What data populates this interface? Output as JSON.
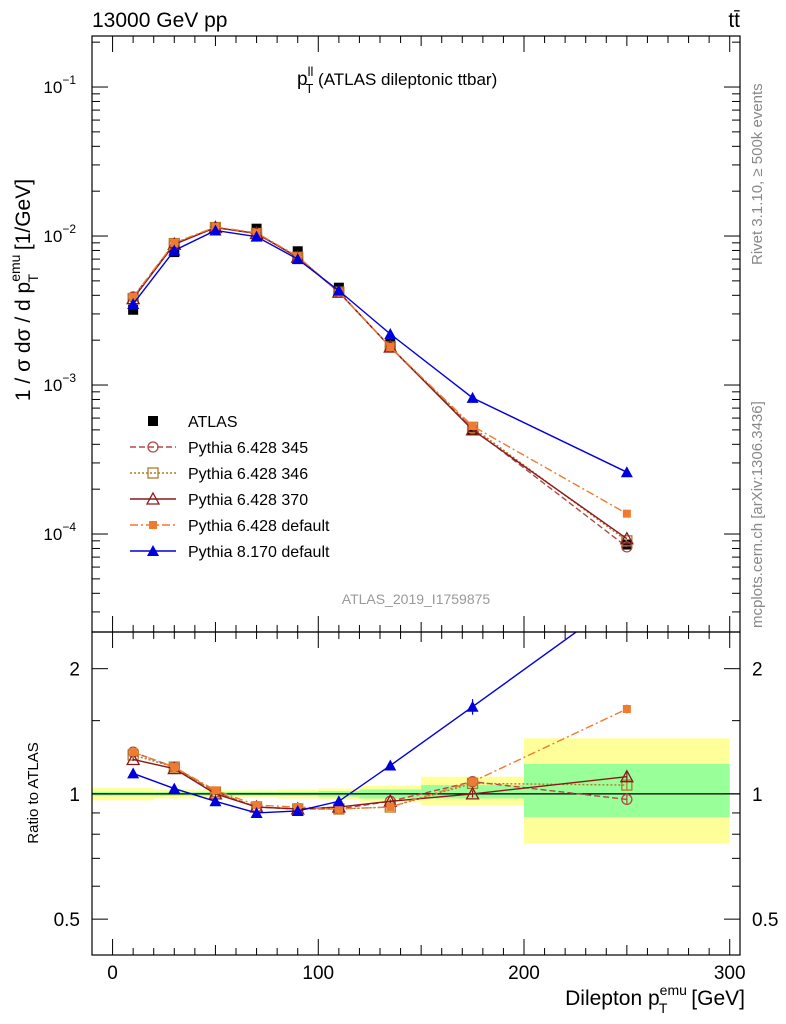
{
  "header": {
    "energy": "13000 GeV pp",
    "process": "tt̄"
  },
  "side_labels": {
    "rivet": "Rivet 3.1.10, ≥ 500k events",
    "source": "mcplots.cern.ch [arXiv:1306.3436]"
  },
  "analysis_id": "ATLAS_2019_I1759875",
  "main_title": {
    "main": "p",
    "sup": "ll",
    "sub": "T",
    "rest": " (ATLAS dileptonic ttbar)"
  },
  "ylabel_main": {
    "pre": "1 / σ  dσ / d p",
    "sup": "emu",
    "sub": "T",
    "post": " [1/GeV]"
  },
  "ylabel_ratio": "Ratio to ATLAS",
  "xlabel": {
    "pre": "Dilepton p",
    "sup": "emu",
    "sub": "T",
    "post": " [GeV]"
  },
  "colors": {
    "data": "#000000",
    "p345": "#b04a4a",
    "p346": "#b07a2a",
    "p370": "#8a1a1a",
    "p6def": "#f07a30",
    "p8": "#0000dd",
    "band_inner": "#99ff99",
    "band_outer": "#ffff99"
  },
  "chart_data": [
    {
      "type": "line",
      "yscale": "log",
      "xlim": [
        -10,
        305
      ],
      "ylim": [
        2.2e-05,
        0.22
      ],
      "xticks": [
        0,
        100,
        200,
        300
      ],
      "yticks": [
        {
          "v": 0.0001,
          "m": "10",
          "e": "−4"
        },
        {
          "v": 0.001,
          "m": "10",
          "e": "−3"
        },
        {
          "v": 0.01,
          "m": "10",
          "e": "−2"
        },
        {
          "v": 0.1,
          "m": "10",
          "e": "−1"
        }
      ],
      "x": [
        10,
        30,
        50,
        70,
        90,
        110,
        135,
        175,
        250
      ],
      "legend_position": "lower-left",
      "series": [
        {
          "name": "ATLAS",
          "key": "data",
          "values": [
            0.0032,
            0.0078,
            0.0113,
            0.0112,
            0.0079,
            0.0045,
            0.0019,
            0.0005,
            8.5e-05
          ]
        },
        {
          "name": "Pythia 6.428 345",
          "key": "p345",
          "values": [
            0.0039,
            0.0089,
            0.0114,
            0.0104,
            0.0072,
            0.0042,
            0.0018,
            0.00051,
            8.2e-05
          ]
        },
        {
          "name": "Pythia 6.428 346",
          "key": "p346",
          "values": [
            0.0038,
            0.0089,
            0.0114,
            0.0104,
            0.0072,
            0.0042,
            0.0018,
            0.00052,
            9e-05
          ]
        },
        {
          "name": "Pythia 6.428 370",
          "key": "p370",
          "values": [
            0.0038,
            0.0088,
            0.0114,
            0.0104,
            0.0072,
            0.0042,
            0.0018,
            0.0005,
            9.3e-05
          ]
        },
        {
          "name": "Pythia 6.428 default",
          "key": "p6def",
          "values": [
            0.0039,
            0.009,
            0.0115,
            0.0105,
            0.0073,
            0.0042,
            0.0018,
            0.00053,
            0.000137
          ]
        },
        {
          "name": "Pythia 8.170 default",
          "key": "p8",
          "values": [
            0.0035,
            0.008,
            0.0109,
            0.0099,
            0.007,
            0.0043,
            0.0022,
            0.00082,
            0.00026
          ]
        }
      ]
    },
    {
      "type": "line",
      "yscale": "log",
      "ylabel": "Ratio to ATLAS",
      "xlim": [
        -10,
        305
      ],
      "ylim": [
        0.41,
        2.45
      ],
      "yticks": [
        0.5,
        1,
        2
      ],
      "x": [
        10,
        30,
        50,
        70,
        90,
        110,
        135,
        175,
        250
      ],
      "bands": [
        {
          "x0": -10,
          "x1": 20,
          "inner": [
            0.99,
            1.01
          ],
          "outer": [
            0.965,
            1.035
          ]
        },
        {
          "x0": 20,
          "x1": 40,
          "inner": [
            0.99,
            1.01
          ],
          "outer": [
            0.975,
            1.025
          ]
        },
        {
          "x0": 40,
          "x1": 60,
          "inner": [
            0.99,
            1.01
          ],
          "outer": [
            0.98,
            1.02
          ]
        },
        {
          "x0": 60,
          "x1": 80,
          "inner": [
            0.99,
            1.01
          ],
          "outer": [
            0.98,
            1.02
          ]
        },
        {
          "x0": 80,
          "x1": 100,
          "inner": [
            0.99,
            1.01
          ],
          "outer": [
            0.975,
            1.025
          ]
        },
        {
          "x0": 100,
          "x1": 120,
          "inner": [
            0.985,
            1.015
          ],
          "outer": [
            0.97,
            1.03
          ]
        },
        {
          "x0": 120,
          "x1": 150,
          "inner": [
            0.975,
            1.025
          ],
          "outer": [
            0.955,
            1.045
          ]
        },
        {
          "x0": 150,
          "x1": 200,
          "inner": [
            0.975,
            1.05
          ],
          "outer": [
            0.94,
            1.1
          ]
        },
        {
          "x0": 200,
          "x1": 300,
          "inner": [
            0.88,
            1.18
          ],
          "outer": [
            0.76,
            1.36
          ]
        }
      ],
      "series": [
        {
          "name": "Pythia 6.428 345",
          "key": "p345",
          "values": [
            1.26,
            1.16,
            1.01,
            0.93,
            0.92,
            0.92,
            0.96,
            1.07,
            0.97
          ],
          "err": [
            0.01,
            0.01,
            0.01,
            0.01,
            0.01,
            0.01,
            0.01,
            0.02,
            0.03
          ]
        },
        {
          "name": "Pythia 6.428 346",
          "key": "p346",
          "values": [
            1.24,
            1.16,
            1.01,
            0.93,
            0.92,
            0.92,
            0.93,
            1.06,
            1.05
          ],
          "err": [
            0.01,
            0.01,
            0.01,
            0.01,
            0.01,
            0.01,
            0.01,
            0.02,
            0.03
          ]
        },
        {
          "name": "Pythia 6.428 370",
          "key": "p370",
          "values": [
            1.21,
            1.15,
            1.0,
            0.93,
            0.92,
            0.93,
            0.96,
            1.0,
            1.1
          ],
          "err": [
            0.01,
            0.01,
            0.01,
            0.01,
            0.01,
            0.01,
            0.01,
            0.02,
            0.03
          ]
        },
        {
          "name": "Pythia 6.428 default",
          "key": "p6def",
          "values": [
            1.26,
            1.16,
            1.02,
            0.94,
            0.93,
            0.92,
            0.93,
            1.07,
            1.6
          ],
          "err": [
            0.01,
            0.01,
            0.01,
            0.01,
            0.01,
            0.01,
            0.01,
            0.02,
            0.04
          ]
        },
        {
          "name": "Pythia 8.170 default",
          "key": "p8",
          "values": [
            1.12,
            1.03,
            0.96,
            0.9,
            0.91,
            0.96,
            1.17,
            1.62,
            3.0
          ],
          "err": [
            0.02,
            0.01,
            0.01,
            0.01,
            0.01,
            0.01,
            0.03,
            0.07,
            0.1
          ]
        }
      ]
    }
  ]
}
